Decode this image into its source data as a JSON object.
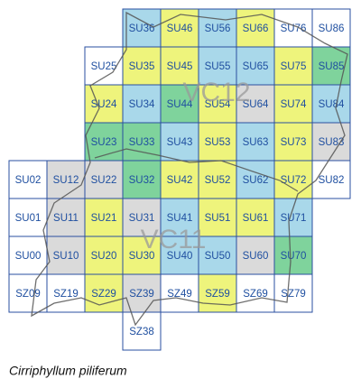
{
  "map": {
    "rows": [
      [
        null,
        null,
        null,
        {
          "label": "SU36",
          "color": "#a9d8ea"
        },
        {
          "label": "SU46",
          "color": "#eef47c"
        },
        {
          "label": "SU56",
          "color": "#a9d8ea"
        },
        {
          "label": "SU66",
          "color": "#eef47c"
        },
        {
          "label": "SU76",
          "color": "#ffffff"
        },
        {
          "label": "SU86",
          "color": "#ffffff"
        }
      ],
      [
        null,
        null,
        {
          "label": "SU25",
          "color": "#ffffff"
        },
        {
          "label": "SU35",
          "color": "#eef47c"
        },
        {
          "label": "SU45",
          "color": "#eef47c"
        },
        {
          "label": "SU55",
          "color": "#a9d8ea"
        },
        {
          "label": "SU65",
          "color": "#a9d8ea"
        },
        {
          "label": "SU75",
          "color": "#eef47c"
        },
        {
          "label": "SU85",
          "color": "#7fd39c"
        }
      ],
      [
        null,
        null,
        {
          "label": "SU24",
          "color": "#eef47c"
        },
        {
          "label": "SU34",
          "color": "#a9d8ea"
        },
        {
          "label": "SU44",
          "color": "#7fd39c"
        },
        {
          "label": "SU54",
          "color": "#eef47c"
        },
        {
          "label": "SU64",
          "color": "#dadada"
        },
        {
          "label": "SU74",
          "color": "#eef47c"
        },
        {
          "label": "SU84",
          "color": "#a9d8ea"
        }
      ],
      [
        null,
        null,
        {
          "label": "SU23",
          "color": "#7fd39c"
        },
        {
          "label": "SU33",
          "color": "#7fd39c"
        },
        {
          "label": "SU43",
          "color": "#a9d8ea"
        },
        {
          "label": "SU53",
          "color": "#eef47c"
        },
        {
          "label": "SU63",
          "color": "#a9d8ea"
        },
        {
          "label": "SU73",
          "color": "#eef47c"
        },
        {
          "label": "SU83",
          "color": "#dadada"
        }
      ],
      [
        {
          "label": "SU02",
          "color": "#ffffff"
        },
        {
          "label": "SU12",
          "color": "#dadada"
        },
        {
          "label": "SU22",
          "color": "#dadada"
        },
        {
          "label": "SU32",
          "color": "#7fd39c"
        },
        {
          "label": "SU42",
          "color": "#eef47c"
        },
        {
          "label": "SU52",
          "color": "#eef47c"
        },
        {
          "label": "SU62",
          "color": "#a9d8ea"
        },
        {
          "label": "SU72",
          "color": "#eef47c"
        },
        {
          "label": "SU82",
          "color": "#ffffff"
        }
      ],
      [
        {
          "label": "SU01",
          "color": "#ffffff"
        },
        {
          "label": "SU11",
          "color": "#dadada"
        },
        {
          "label": "SU21",
          "color": "#eef47c"
        },
        {
          "label": "SU31",
          "color": "#dadada"
        },
        {
          "label": "SU41",
          "color": "#a9d8ea"
        },
        {
          "label": "SU51",
          "color": "#eef47c"
        },
        {
          "label": "SU61",
          "color": "#eef47c"
        },
        {
          "label": "SU71",
          "color": "#a9d8ea"
        },
        null
      ],
      [
        {
          "label": "SU00",
          "color": "#ffffff"
        },
        {
          "label": "SU10",
          "color": "#dadada"
        },
        {
          "label": "SU20",
          "color": "#eef47c"
        },
        {
          "label": "SU30",
          "color": "#eef47c"
        },
        {
          "label": "SU40",
          "color": "#a9d8ea"
        },
        {
          "label": "SU50",
          "color": "#a9d8ea"
        },
        {
          "label": "SU60",
          "color": "#dadada"
        },
        {
          "label": "SU70",
          "color": "#7fd39c"
        },
        null
      ],
      [
        {
          "label": "SZ09",
          "color": "#ffffff"
        },
        {
          "label": "SZ19",
          "color": "#ffffff"
        },
        {
          "label": "SZ29",
          "color": "#eef47c"
        },
        {
          "label": "SZ39",
          "color": "#dadada"
        },
        {
          "label": "SZ49",
          "color": "#ffffff"
        },
        {
          "label": "SZ59",
          "color": "#eef47c"
        },
        {
          "label": "SZ69",
          "color": "#ffffff"
        },
        {
          "label": "SZ79",
          "color": "#ffffff"
        },
        null
      ],
      [
        null,
        null,
        null,
        {
          "label": "SZ38",
          "color": "#ffffff"
        },
        null,
        null,
        null,
        null,
        null
      ]
    ],
    "regions": [
      "VC12",
      "VC11"
    ],
    "caption": "Cirriphyllum piliferum"
  }
}
